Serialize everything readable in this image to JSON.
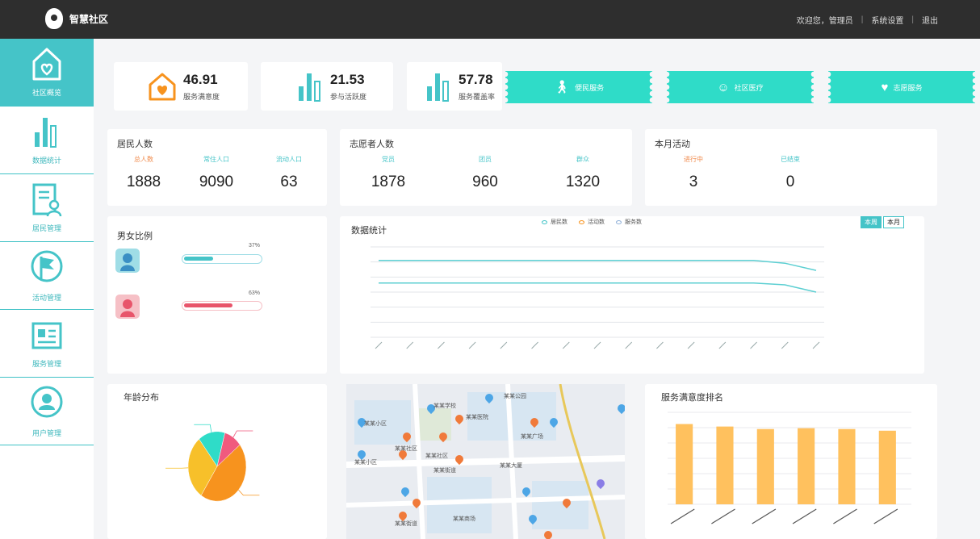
{
  "header": {
    "app_name": "智慧社区",
    "links": [
      "欢迎您，管理员",
      "系统设置",
      "退出"
    ]
  },
  "sidebar": {
    "items": [
      {
        "label": "社区概览",
        "icon": "house-heart-icon"
      },
      {
        "label": "数据统计",
        "icon": "bar-chart-icon"
      },
      {
        "label": "居民管理",
        "icon": "resident-card-icon"
      },
      {
        "label": "活动管理",
        "icon": "flag-icon"
      },
      {
        "label": "服务管理",
        "icon": "id-card-icon"
      },
      {
        "label": "用户管理",
        "icon": "user-circle-icon"
      }
    ]
  },
  "stats": [
    {
      "value": "46.91",
      "label": "服务满意度",
      "icon": "house-heart-icon"
    },
    {
      "value": "21.53",
      "label": "参与活跃度",
      "icon": "bar-chart-icon"
    },
    {
      "value": "57.78",
      "label": "服务覆盖率",
      "icon": "bar-chart-icon"
    }
  ],
  "tickets": [
    {
      "label": "便民服务",
      "icon": "person-icon"
    },
    {
      "label": "社区医疗",
      "icon": "doctor-icon"
    },
    {
      "label": "志愿服务",
      "icon": "heart-hand-icon"
    }
  ],
  "residents": {
    "title": "居民人数",
    "metrics": [
      {
        "label": "总人数",
        "value": "1888",
        "color": "#f08a4b"
      },
      {
        "label": "常住人口",
        "value": "9090",
        "color": "#45c4c8"
      },
      {
        "label": "流动人口",
        "value": "63",
        "color": "#45c4c8"
      }
    ]
  },
  "volunteers": {
    "title": "志愿者人数",
    "metrics": [
      {
        "label": "党员",
        "value": "1878",
        "color": "#45c4c8"
      },
      {
        "label": "团员",
        "value": "960",
        "color": "#45c4c8"
      },
      {
        "label": "群众",
        "value": "1320",
        "color": "#45c4c8"
      }
    ]
  },
  "events": {
    "title": "本月活动",
    "metrics": [
      {
        "label": "进行中",
        "value": "3",
        "color": "#f08a4b"
      },
      {
        "label": "已结束",
        "value": "0",
        "color": "#45c4c8"
      }
    ]
  },
  "gender": {
    "title": "男女比例",
    "rows": [
      {
        "pct": "37%",
        "fill": 0.37,
        "color": "#45c4c8",
        "avatar_bg": "#9fdde6",
        "icon": "male-avatar-icon"
      },
      {
        "pct": "63%",
        "fill": 0.63,
        "color": "#e8556b",
        "avatar_bg": "#f6c0c6",
        "icon": "female-avatar-icon"
      }
    ]
  },
  "trend": {
    "title": "数据统计",
    "legend": [
      "居民数",
      "活动数",
      "服务数"
    ],
    "tabs": [
      "本周",
      "本月"
    ]
  },
  "age": {
    "title": "年龄分布"
  },
  "map": {
    "labels": [
      "某某小区",
      "某某社区",
      "某某学校",
      "某某医院",
      "某某公园",
      "某某广场",
      "某某街道",
      "某某大厦",
      "某某商场",
      "某某社区",
      "某某小区",
      "某某街道"
    ]
  },
  "ranking": {
    "title": "服务满意度排名"
  },
  "chart_data": [
    {
      "type": "line",
      "series": [
        {
          "values": [
            85,
            85,
            85,
            85,
            85,
            85,
            85,
            85,
            85,
            85,
            85,
            85,
            85,
            82,
            74
          ]
        },
        {
          "values": [
            60,
            60,
            60,
            60,
            60,
            60,
            60,
            60,
            60,
            60,
            60,
            60,
            60,
            58,
            50
          ]
        }
      ],
      "ylim": [
        0,
        100
      ]
    },
    {
      "type": "pie",
      "values": [
        45,
        30,
        15,
        10
      ],
      "colors": [
        "#f7931e",
        "#f7c02a",
        "#2fdcc8",
        "#f05a7e"
      ]
    },
    {
      "type": "bar",
      "values": [
        96,
        93,
        90,
        91,
        90,
        88
      ],
      "color": "#ffc15e",
      "ylim": [
        0,
        110
      ]
    }
  ]
}
